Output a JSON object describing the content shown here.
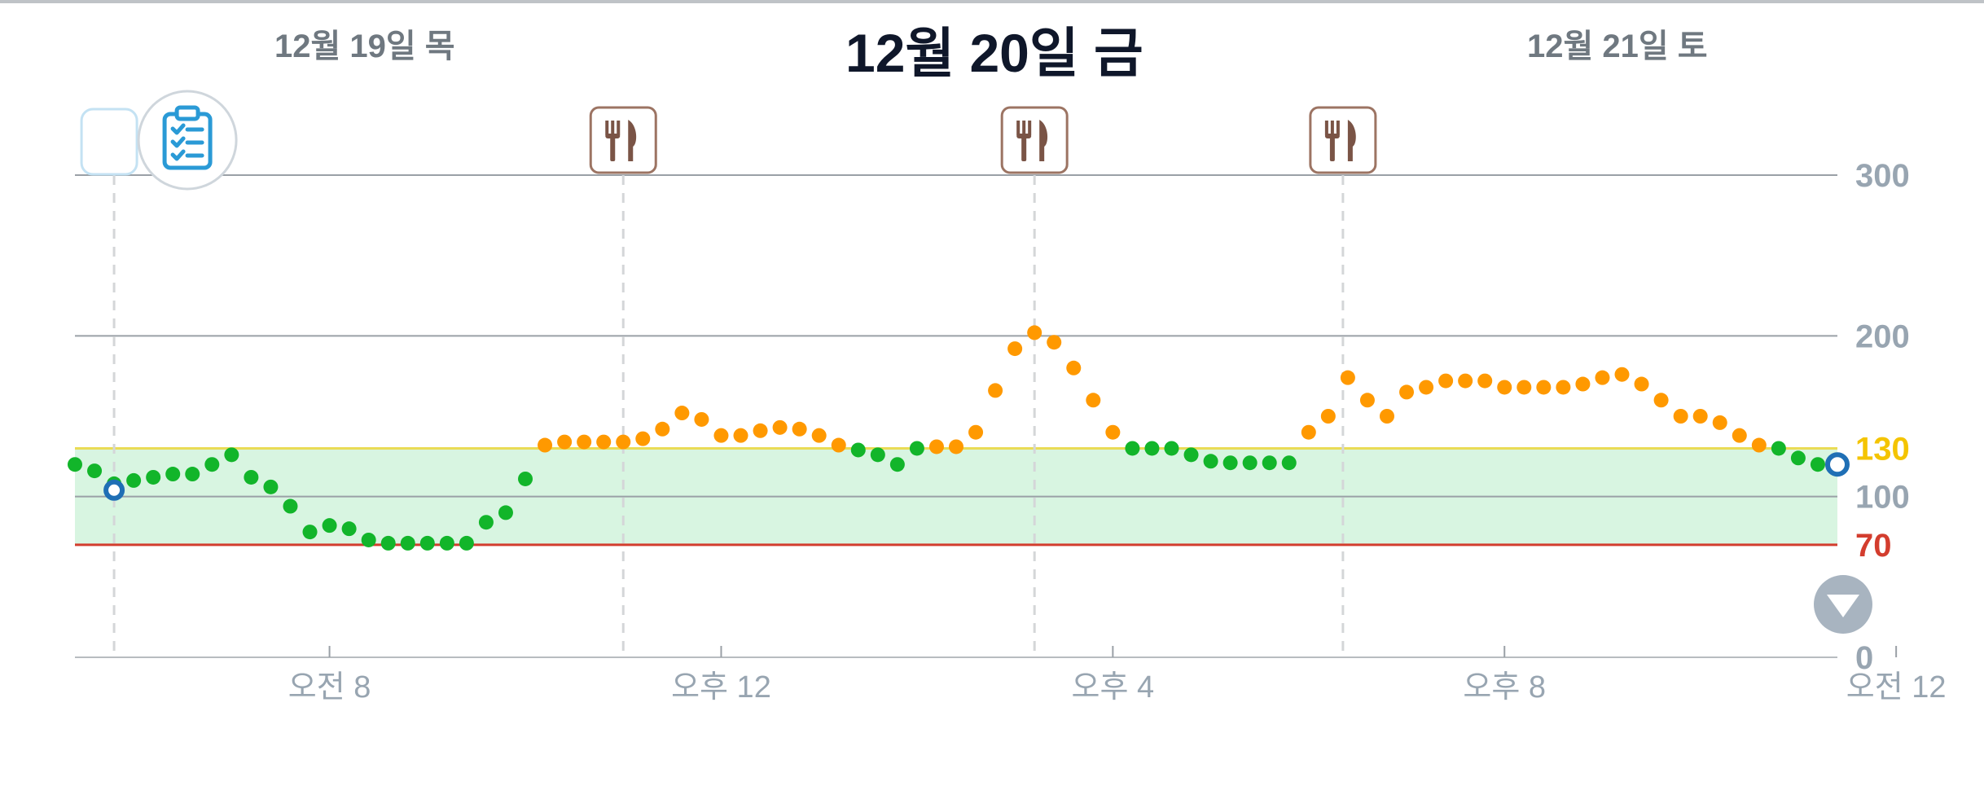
{
  "header": {
    "prev_day": "12월 19일 목",
    "current_day": "12월 20일 금",
    "next_day": "12월 21일 토"
  },
  "colors": {
    "in_range": "#12b52a",
    "high": "#ff9900",
    "target_band_fill": "#d8f5e1",
    "high_limit_line": "#eadc55",
    "low_limit_line": "#d33d2e",
    "axis_label": "#98a5b1",
    "grid": "#9aa0a6",
    "marker_border": "#9c7463",
    "fab": "#a8b4c0",
    "glucose_ring": "#1f6fb5"
  },
  "events": [
    {
      "icon": "clipboard-icon",
      "time": 5.8
    },
    {
      "icon": "fork-knife-icon",
      "time": 11.0
    },
    {
      "icon": "fork-knife-icon",
      "time": 15.2
    },
    {
      "icon": "fork-knife-icon",
      "time": 18.35
    }
  ],
  "chart_data": {
    "type": "scatter",
    "x_unit": "hour of day",
    "xlim": [
      5.4,
      23.4
    ],
    "ylim": [
      0,
      300
    ],
    "y_ticks": [
      {
        "label": "300",
        "value": 300
      },
      {
        "label": "200",
        "value": 200
      },
      {
        "label": "130",
        "value": 130
      },
      {
        "label": "100",
        "value": 100
      },
      {
        "label": "70",
        "value": 70
      },
      {
        "label": "0",
        "value": 0
      }
    ],
    "x_ticks": [
      {
        "label": "오전 8",
        "value": 8
      },
      {
        "label": "오후 12",
        "value": 12
      },
      {
        "label": "오후 4",
        "value": 16
      },
      {
        "label": "오후 8",
        "value": 20
      },
      {
        "label": "오전 12",
        "value": 24
      }
    ],
    "target_range": [
      70,
      130
    ],
    "high_threshold": 130,
    "low_threshold": 70,
    "grid_lines": [
      300,
      200,
      100
    ],
    "current_reading": {
      "x": 23.4,
      "y": 120
    },
    "marked_reading": {
      "x": 5.8,
      "y": 104
    },
    "series": [
      {
        "x": [
          5.4,
          5.6,
          5.8,
          6.0,
          6.2,
          6.4,
          6.6,
          6.8,
          7.0,
          7.2,
          7.4,
          7.6,
          7.8,
          8.0,
          8.2,
          8.4,
          8.6,
          8.8,
          9.0,
          9.2,
          9.4,
          9.6,
          9.8,
          10.0,
          10.2,
          10.4,
          10.6,
          10.8,
          11.0,
          11.2,
          11.4,
          11.6,
          11.8,
          12.0,
          12.2,
          12.4,
          12.6,
          12.8,
          13.0,
          13.2,
          13.4,
          13.6,
          13.8,
          14.0,
          14.2,
          14.4,
          14.6,
          14.8,
          15.0,
          15.2,
          15.4,
          15.6,
          15.8,
          16.0,
          16.2,
          16.4,
          16.6,
          16.8,
          17.0,
          17.2,
          17.4,
          17.6,
          17.8,
          18.0,
          18.2,
          18.4,
          18.6,
          18.8,
          19.0,
          19.2,
          19.4,
          19.6,
          19.8,
          20.0,
          20.2,
          20.4,
          20.6,
          20.8,
          21.0,
          21.2,
          21.4,
          21.6,
          21.8,
          22.0,
          22.2,
          22.4,
          22.6,
          22.8,
          23.0,
          23.2,
          23.4
        ],
        "y": [
          120,
          116,
          108,
          110,
          112,
          114,
          114,
          120,
          126,
          112,
          106,
          94,
          78,
          82,
          80,
          73,
          71,
          71,
          71,
          71,
          71,
          84,
          90,
          111,
          132,
          134,
          134,
          134,
          134,
          136,
          142,
          152,
          148,
          138,
          138,
          141,
          143,
          142,
          138,
          132,
          129,
          126,
          120,
          130,
          131,
          131,
          140,
          166,
          192,
          202,
          196,
          180,
          160,
          140,
          130,
          130,
          130,
          126,
          122,
          121,
          121,
          121,
          121,
          140,
          150,
          174,
          160,
          150,
          165,
          168,
          172,
          172,
          172,
          168,
          168,
          168,
          168,
          170,
          174,
          176,
          170,
          160,
          150,
          150,
          146,
          138,
          132,
          130,
          124,
          120,
          120
        ]
      }
    ]
  },
  "fab": {
    "icon": "chevron-down-icon"
  }
}
